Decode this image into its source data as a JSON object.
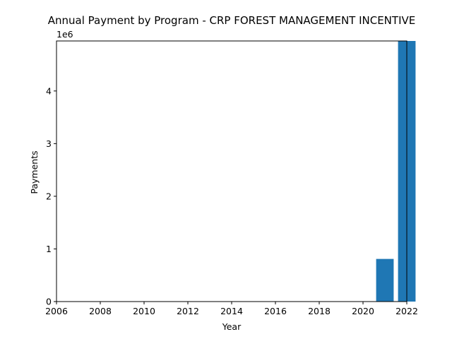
{
  "chart_data": {
    "type": "bar",
    "title": "Annual Payment by Program - CRP FOREST MANAGEMENT INCENTIVE",
    "xlabel": "Year",
    "ylabel": "Payments",
    "y_offset_label": "1e6",
    "xlim": [
      2006,
      2022
    ],
    "ylim": [
      0,
      4950000
    ],
    "x_ticks": [
      2006,
      2008,
      2010,
      2012,
      2014,
      2016,
      2018,
      2020,
      2022
    ],
    "x_tick_labels": [
      "2006",
      "2008",
      "2010",
      "2012",
      "2014",
      "2016",
      "2018",
      "2020",
      "2022"
    ],
    "y_ticks": [
      0,
      1000000,
      2000000,
      3000000,
      4000000
    ],
    "y_tick_labels": [
      "0",
      "1",
      "2",
      "3",
      "4"
    ],
    "bar_width_years": 0.8,
    "grid": false,
    "color": "#1f77b4",
    "categories": [
      2021,
      2022
    ],
    "values": [
      810000,
      4950000
    ]
  }
}
